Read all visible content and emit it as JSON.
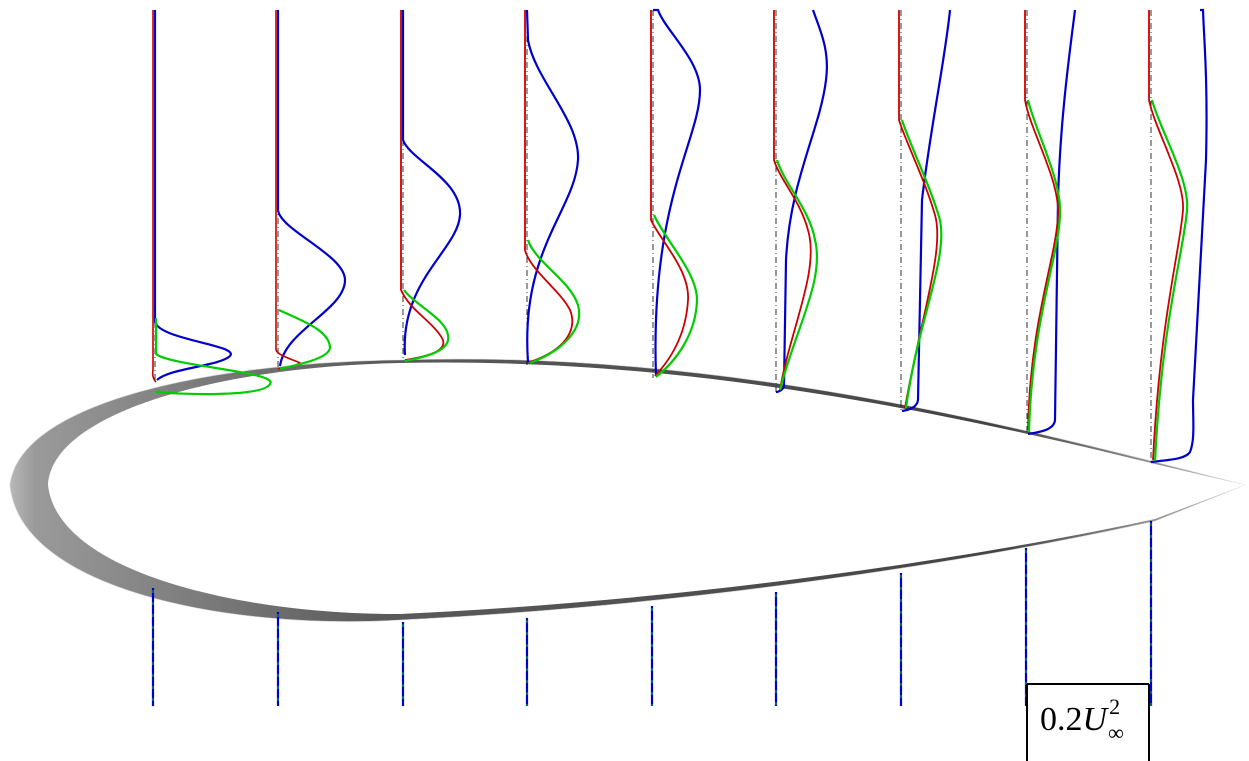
{
  "figure": {
    "scale_label": {
      "coef": "0.2",
      "symbol": "U",
      "superscript": "2",
      "subscript": "∞"
    },
    "colors": {
      "blue": "#0000cc",
      "red": "#cc0000",
      "green": "#00cc00",
      "reference": "#000000",
      "airfoil_shade": "#808080"
    },
    "stations_count": 9
  }
}
